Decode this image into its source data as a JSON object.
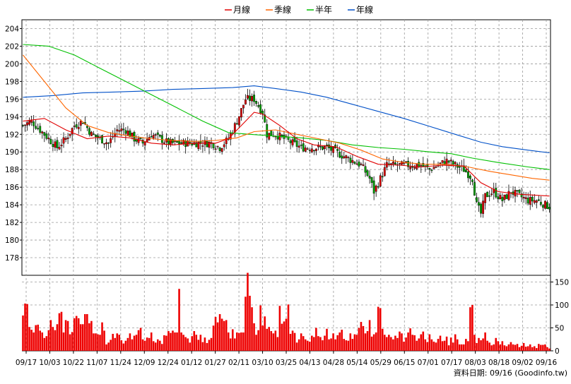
{
  "chart_data": {
    "type": "candlestick-with-volume",
    "legend": [
      {
        "name": "月線",
        "color": "#e00000"
      },
      {
        "name": "季線",
        "color": "#ff6600"
      },
      {
        "name": "半年",
        "color": "#00c000"
      },
      {
        "name": "年線",
        "color": "#0050c8"
      }
    ],
    "price_axis": {
      "min": 176,
      "max": 205,
      "ticks": [
        178,
        180,
        182,
        184,
        186,
        188,
        190,
        192,
        194,
        196,
        198,
        200,
        202,
        204
      ]
    },
    "volume_axis": {
      "min": 0,
      "max": 180,
      "ticks": [
        0,
        50,
        100,
        150
      ]
    },
    "dates": [
      "09/17",
      "10/03",
      "10/22",
      "11/07",
      "11/24",
      "12/09",
      "12/24",
      "01/12",
      "01/27",
      "02/11",
      "03/10",
      "03/25",
      "04/13",
      "04/28",
      "05/14",
      "05/29",
      "06/15",
      "07/01",
      "07/17",
      "08/03",
      "08/18",
      "09/02",
      "09/16"
    ],
    "footer": "資料日期: 09/16  (Goodinfo.tw)",
    "price_path": [
      [
        0,
        193.0
      ],
      [
        4,
        193.5
      ],
      [
        8,
        192.5
      ],
      [
        12,
        191.5
      ],
      [
        16,
        190.5
      ],
      [
        20,
        191.5
      ],
      [
        24,
        193.0
      ],
      [
        28,
        193.5
      ],
      [
        32,
        192.0
      ],
      [
        36,
        191.5
      ],
      [
        40,
        191.0
      ],
      [
        44,
        192.5
      ],
      [
        48,
        192.5
      ],
      [
        52,
        191.5
      ],
      [
        56,
        191.0
      ],
      [
        60,
        192.0
      ],
      [
        64,
        191.5
      ],
      [
        68,
        191.0
      ],
      [
        72,
        191.0
      ],
      [
        76,
        191.0
      ],
      [
        80,
        191.0
      ],
      [
        84,
        191.0
      ],
      [
        88,
        191.0
      ],
      [
        92,
        190.5
      ],
      [
        96,
        191.5
      ],
      [
        100,
        193.5
      ],
      [
        104,
        196.0
      ],
      [
        108,
        196.0
      ],
      [
        112,
        194.5
      ],
      [
        114,
        192.0
      ],
      [
        118,
        192.0
      ],
      [
        122,
        191.5
      ],
      [
        126,
        191.0
      ],
      [
        130,
        190.5
      ],
      [
        134,
        190.5
      ],
      [
        138,
        190.5
      ],
      [
        142,
        190.5
      ],
      [
        146,
        190.0
      ],
      [
        150,
        189.5
      ],
      [
        154,
        189.0
      ],
      [
        158,
        188.5
      ],
      [
        162,
        187.0
      ],
      [
        164,
        185.5
      ],
      [
        166,
        186.5
      ],
      [
        170,
        188.5
      ],
      [
        174,
        188.5
      ],
      [
        178,
        188.5
      ],
      [
        182,
        188.5
      ],
      [
        186,
        188.5
      ],
      [
        190,
        188.0
      ],
      [
        194,
        188.5
      ],
      [
        198,
        189.0
      ],
      [
        202,
        188.5
      ],
      [
        206,
        188.0
      ],
      [
        210,
        187.0
      ],
      [
        212,
        184.0
      ],
      [
        214,
        183.0
      ],
      [
        216,
        185.0
      ],
      [
        220,
        185.5
      ],
      [
        224,
        184.5
      ],
      [
        228,
        185.5
      ],
      [
        232,
        185.0
      ],
      [
        236,
        184.5
      ],
      [
        240,
        184.5
      ],
      [
        244,
        184.0
      ],
      [
        246,
        183.8
      ]
    ],
    "ma_month": [
      [
        0,
        193.5
      ],
      [
        10,
        193.8
      ],
      [
        20,
        192.5
      ],
      [
        30,
        191.5
      ],
      [
        40,
        191.8
      ],
      [
        50,
        191.6
      ],
      [
        60,
        191.0
      ],
      [
        70,
        190.8
      ],
      [
        80,
        191.0
      ],
      [
        90,
        191.0
      ],
      [
        96,
        191.5
      ],
      [
        104,
        193.5
      ],
      [
        108,
        194.5
      ],
      [
        112,
        194.3
      ],
      [
        120,
        193.0
      ],
      [
        128,
        191.5
      ],
      [
        136,
        190.8
      ],
      [
        146,
        190.6
      ],
      [
        156,
        189.5
      ],
      [
        166,
        188.6
      ],
      [
        176,
        188.5
      ],
      [
        186,
        188.3
      ],
      [
        196,
        188.5
      ],
      [
        206,
        188.4
      ],
      [
        214,
        186.5
      ],
      [
        222,
        185.5
      ],
      [
        232,
        185.2
      ],
      [
        246,
        185.0
      ]
    ],
    "ma_quarter": [
      [
        0,
        201.0
      ],
      [
        10,
        198.0
      ],
      [
        20,
        195.0
      ],
      [
        30,
        193.0
      ],
      [
        40,
        192.2
      ],
      [
        50,
        191.8
      ],
      [
        60,
        191.5
      ],
      [
        70,
        191.3
      ],
      [
        80,
        191.2
      ],
      [
        90,
        191.3
      ],
      [
        100,
        191.6
      ],
      [
        108,
        192.3
      ],
      [
        118,
        192.5
      ],
      [
        128,
        192.0
      ],
      [
        138,
        191.5
      ],
      [
        148,
        191.0
      ],
      [
        158,
        190.2
      ],
      [
        168,
        189.2
      ],
      [
        178,
        188.8
      ],
      [
        188,
        188.6
      ],
      [
        198,
        188.6
      ],
      [
        208,
        188.3
      ],
      [
        218,
        187.8
      ],
      [
        228,
        187.4
      ],
      [
        238,
        187.0
      ],
      [
        246,
        186.8
      ]
    ],
    "ma_half": [
      [
        0,
        202.2
      ],
      [
        12,
        202.0
      ],
      [
        24,
        201.0
      ],
      [
        36,
        199.5
      ],
      [
        48,
        198.0
      ],
      [
        60,
        196.5
      ],
      [
        72,
        195.0
      ],
      [
        84,
        193.5
      ],
      [
        96,
        192.2
      ],
      [
        106,
        192.0
      ],
      [
        118,
        191.8
      ],
      [
        130,
        191.6
      ],
      [
        142,
        191.3
      ],
      [
        154,
        190.8
      ],
      [
        166,
        190.5
      ],
      [
        178,
        190.3
      ],
      [
        190,
        190.0
      ],
      [
        200,
        189.8
      ],
      [
        210,
        189.3
      ],
      [
        222,
        188.8
      ],
      [
        236,
        188.3
      ],
      [
        246,
        188.0
      ]
    ],
    "ma_year": [
      [
        0,
        196.2
      ],
      [
        14,
        196.4
      ],
      [
        28,
        196.7
      ],
      [
        42,
        196.8
      ],
      [
        56,
        196.9
      ],
      [
        70,
        197.1
      ],
      [
        84,
        197.2
      ],
      [
        98,
        197.3
      ],
      [
        108,
        197.5
      ],
      [
        118,
        197.2
      ],
      [
        130,
        196.8
      ],
      [
        142,
        196.2
      ],
      [
        154,
        195.4
      ],
      [
        166,
        194.6
      ],
      [
        178,
        193.8
      ],
      [
        190,
        192.9
      ],
      [
        202,
        192.0
      ],
      [
        214,
        191.1
      ],
      [
        224,
        190.6
      ],
      [
        236,
        190.2
      ],
      [
        246,
        189.9
      ]
    ],
    "volume": [
      [
        0,
        77
      ],
      [
        1,
        103
      ],
      [
        2,
        102
      ],
      [
        3,
        52
      ],
      [
        4,
        46
      ],
      [
        5,
        40
      ],
      [
        6,
        56
      ],
      [
        7,
        57
      ],
      [
        8,
        44
      ],
      [
        9,
        40
      ],
      [
        10,
        28
      ],
      [
        11,
        32
      ],
      [
        12,
        45
      ],
      [
        13,
        67
      ],
      [
        14,
        52
      ],
      [
        15,
        45
      ],
      [
        16,
        58
      ],
      [
        17,
        82
      ],
      [
        18,
        85
      ],
      [
        19,
        40
      ],
      [
        20,
        67
      ],
      [
        21,
        65
      ],
      [
        22,
        36
      ],
      [
        23,
        41
      ],
      [
        24,
        71
      ],
      [
        25,
        76
      ],
      [
        26,
        71
      ],
      [
        27,
        58
      ],
      [
        28,
        58
      ],
      [
        29,
        80
      ],
      [
        30,
        80
      ],
      [
        31,
        60
      ],
      [
        32,
        65
      ],
      [
        33,
        38
      ],
      [
        34,
        38
      ],
      [
        35,
        36
      ],
      [
        36,
        35
      ],
      [
        37,
        62
      ],
      [
        38,
        44
      ],
      [
        39,
        14
      ],
      [
        40,
        18
      ],
      [
        41,
        24
      ],
      [
        42,
        37
      ],
      [
        43,
        28
      ],
      [
        44,
        38
      ],
      [
        45,
        35
      ],
      [
        46,
        23
      ],
      [
        47,
        16
      ],
      [
        48,
        22
      ],
      [
        49,
        28
      ],
      [
        50,
        38
      ],
      [
        51,
        25
      ],
      [
        52,
        33
      ],
      [
        53,
        35
      ],
      [
        54,
        45
      ],
      [
        55,
        50
      ],
      [
        56,
        25
      ],
      [
        57,
        22
      ],
      [
        58,
        29
      ],
      [
        59,
        28
      ],
      [
        60,
        40
      ],
      [
        61,
        21
      ],
      [
        62,
        18
      ],
      [
        63,
        25
      ],
      [
        64,
        22
      ],
      [
        65,
        15
      ],
      [
        66,
        34
      ],
      [
        67,
        33
      ],
      [
        68,
        43
      ],
      [
        69,
        39
      ],
      [
        70,
        44
      ],
      [
        71,
        40
      ],
      [
        72,
        40
      ],
      [
        73,
        135
      ],
      [
        74,
        40
      ],
      [
        75,
        35
      ],
      [
        76,
        30
      ],
      [
        77,
        27
      ],
      [
        78,
        18
      ],
      [
        79,
        32
      ],
      [
        80,
        43
      ],
      [
        81,
        35
      ],
      [
        82,
        24
      ],
      [
        83,
        35
      ],
      [
        84,
        19
      ],
      [
        85,
        29
      ],
      [
        86,
        17
      ],
      [
        87,
        24
      ],
      [
        88,
        28
      ],
      [
        89,
        55
      ],
      [
        90,
        74
      ],
      [
        91,
        62
      ],
      [
        92,
        80
      ],
      [
        93,
        70
      ],
      [
        94,
        65
      ],
      [
        95,
        67
      ],
      [
        96,
        40
      ],
      [
        97,
        27
      ],
      [
        98,
        47
      ],
      [
        99,
        27
      ],
      [
        100,
        40
      ],
      [
        101,
        39
      ],
      [
        102,
        40
      ],
      [
        103,
        40
      ],
      [
        104,
        118
      ],
      [
        105,
        170
      ],
      [
        106,
        120
      ],
      [
        107,
        95
      ],
      [
        108,
        60
      ],
      [
        109,
        35
      ],
      [
        110,
        45
      ],
      [
        111,
        99
      ],
      [
        112,
        55
      ],
      [
        113,
        75
      ],
      [
        114,
        48
      ],
      [
        115,
        52
      ],
      [
        116,
        43
      ],
      [
        117,
        38
      ],
      [
        118,
        44
      ],
      [
        119,
        30
      ],
      [
        120,
        98
      ],
      [
        121,
        59
      ],
      [
        122,
        64
      ],
      [
        123,
        70
      ],
      [
        124,
        101
      ],
      [
        125,
        37
      ],
      [
        126,
        44
      ],
      [
        127,
        39
      ],
      [
        128,
        18
      ],
      [
        129,
        25
      ],
      [
        130,
        38
      ],
      [
        131,
        32
      ],
      [
        132,
        25
      ],
      [
        133,
        22
      ],
      [
        134,
        20
      ],
      [
        135,
        33
      ],
      [
        136,
        30
      ],
      [
        137,
        50
      ],
      [
        138,
        32
      ],
      [
        139,
        30
      ],
      [
        140,
        23
      ],
      [
        141,
        33
      ],
      [
        142,
        48
      ],
      [
        143,
        25
      ],
      [
        144,
        27
      ],
      [
        145,
        38
      ],
      [
        146,
        25
      ],
      [
        147,
        34
      ],
      [
        148,
        40
      ],
      [
        149,
        46
      ],
      [
        150,
        26
      ],
      [
        151,
        23
      ],
      [
        152,
        22
      ],
      [
        153,
        38
      ],
      [
        154,
        26
      ],
      [
        155,
        36
      ],
      [
        156,
        35
      ],
      [
        157,
        50
      ],
      [
        158,
        63
      ],
      [
        159,
        54
      ],
      [
        160,
        38
      ],
      [
        161,
        43
      ],
      [
        162,
        67
      ],
      [
        163,
        31
      ],
      [
        164,
        36
      ],
      [
        165,
        40
      ],
      [
        166,
        96
      ],
      [
        167,
        93
      ],
      [
        168,
        48
      ],
      [
        169,
        35
      ],
      [
        170,
        30
      ],
      [
        171,
        35
      ],
      [
        172,
        30
      ],
      [
        173,
        25
      ],
      [
        174,
        33
      ],
      [
        175,
        28
      ],
      [
        176,
        42
      ],
      [
        177,
        38
      ],
      [
        178,
        20
      ],
      [
        179,
        29
      ],
      [
        180,
        40
      ],
      [
        181,
        49
      ],
      [
        182,
        35
      ],
      [
        183,
        34
      ],
      [
        184,
        22
      ],
      [
        185,
        27
      ],
      [
        186,
        36
      ],
      [
        187,
        42
      ],
      [
        188,
        25
      ],
      [
        189,
        19
      ],
      [
        190,
        36
      ],
      [
        191,
        25
      ],
      [
        192,
        20
      ],
      [
        193,
        18
      ],
      [
        194,
        26
      ],
      [
        195,
        33
      ],
      [
        196,
        21
      ],
      [
        197,
        22
      ],
      [
        198,
        31
      ],
      [
        199,
        12
      ],
      [
        200,
        29
      ],
      [
        201,
        18
      ],
      [
        202,
        36
      ],
      [
        203,
        25
      ],
      [
        204,
        14
      ],
      [
        205,
        14
      ],
      [
        206,
        14
      ],
      [
        207,
        26
      ],
      [
        208,
        21
      ],
      [
        209,
        95
      ],
      [
        210,
        100
      ],
      [
        211,
        35
      ],
      [
        212,
        17
      ],
      [
        213,
        28
      ],
      [
        214,
        23
      ],
      [
        215,
        27
      ],
      [
        216,
        40
      ],
      [
        217,
        22
      ],
      [
        218,
        18
      ],
      [
        219,
        12
      ],
      [
        220,
        14
      ],
      [
        221,
        28
      ],
      [
        222,
        21
      ],
      [
        223,
        14
      ],
      [
        224,
        21
      ],
      [
        225,
        12
      ],
      [
        226,
        10
      ],
      [
        227,
        14
      ],
      [
        228,
        19
      ],
      [
        229,
        14
      ],
      [
        230,
        13
      ],
      [
        231,
        15
      ],
      [
        232,
        8
      ],
      [
        233,
        11
      ],
      [
        234,
        17
      ],
      [
        235,
        9
      ],
      [
        236,
        10
      ],
      [
        237,
        14
      ],
      [
        238,
        8
      ],
      [
        239,
        10
      ],
      [
        240,
        6
      ],
      [
        241,
        15
      ],
      [
        242,
        13
      ],
      [
        243,
        13
      ],
      [
        244,
        14
      ],
      [
        245,
        8
      ],
      [
        246,
        5
      ]
    ]
  }
}
